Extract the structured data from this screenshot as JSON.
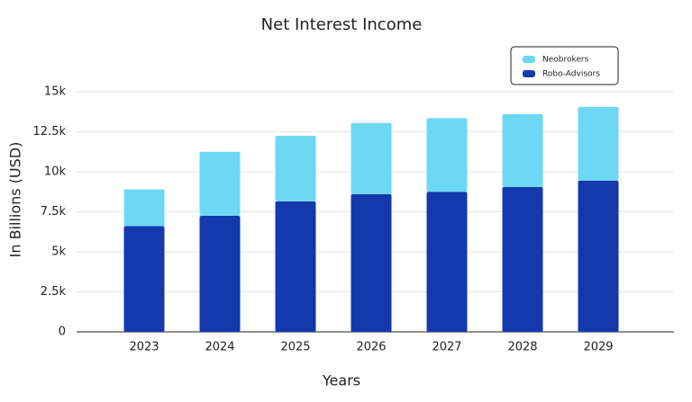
{
  "chart_data": {
    "type": "stacked-bar",
    "title": "Net Interest Income",
    "x_label": "Years",
    "y_label": "In Billions (USD)",
    "categories": [
      "2023",
      "2024",
      "2025",
      "2026",
      "2027",
      "2028",
      "2029"
    ],
    "series": [
      {
        "name": "Neobrokers",
        "color": "#6dd8f3",
        "values": [
          2300,
          4000,
          4100,
          4450,
          4600,
          4550,
          4600
        ]
      },
      {
        "name": "Robo-Advisors",
        "color": "#1339ad",
        "values": [
          6600,
          7250,
          8150,
          8600,
          8750,
          9050,
          9450
        ]
      }
    ],
    "ylim": [
      0,
      15000
    ],
    "yticks": [
      0,
      {
        "value": 2500,
        "label": "2.5k"
      },
      {
        "value": 5000,
        "label": "5k"
      },
      {
        "value": 7500,
        "label": "7.5k"
      },
      {
        "value": 10000,
        "label": "10k"
      },
      {
        "value": 12500,
        "label": "12.5k"
      },
      {
        "value": 15000,
        "label": "15k"
      }
    ],
    "grid": true,
    "legend_position": "top-right"
  }
}
